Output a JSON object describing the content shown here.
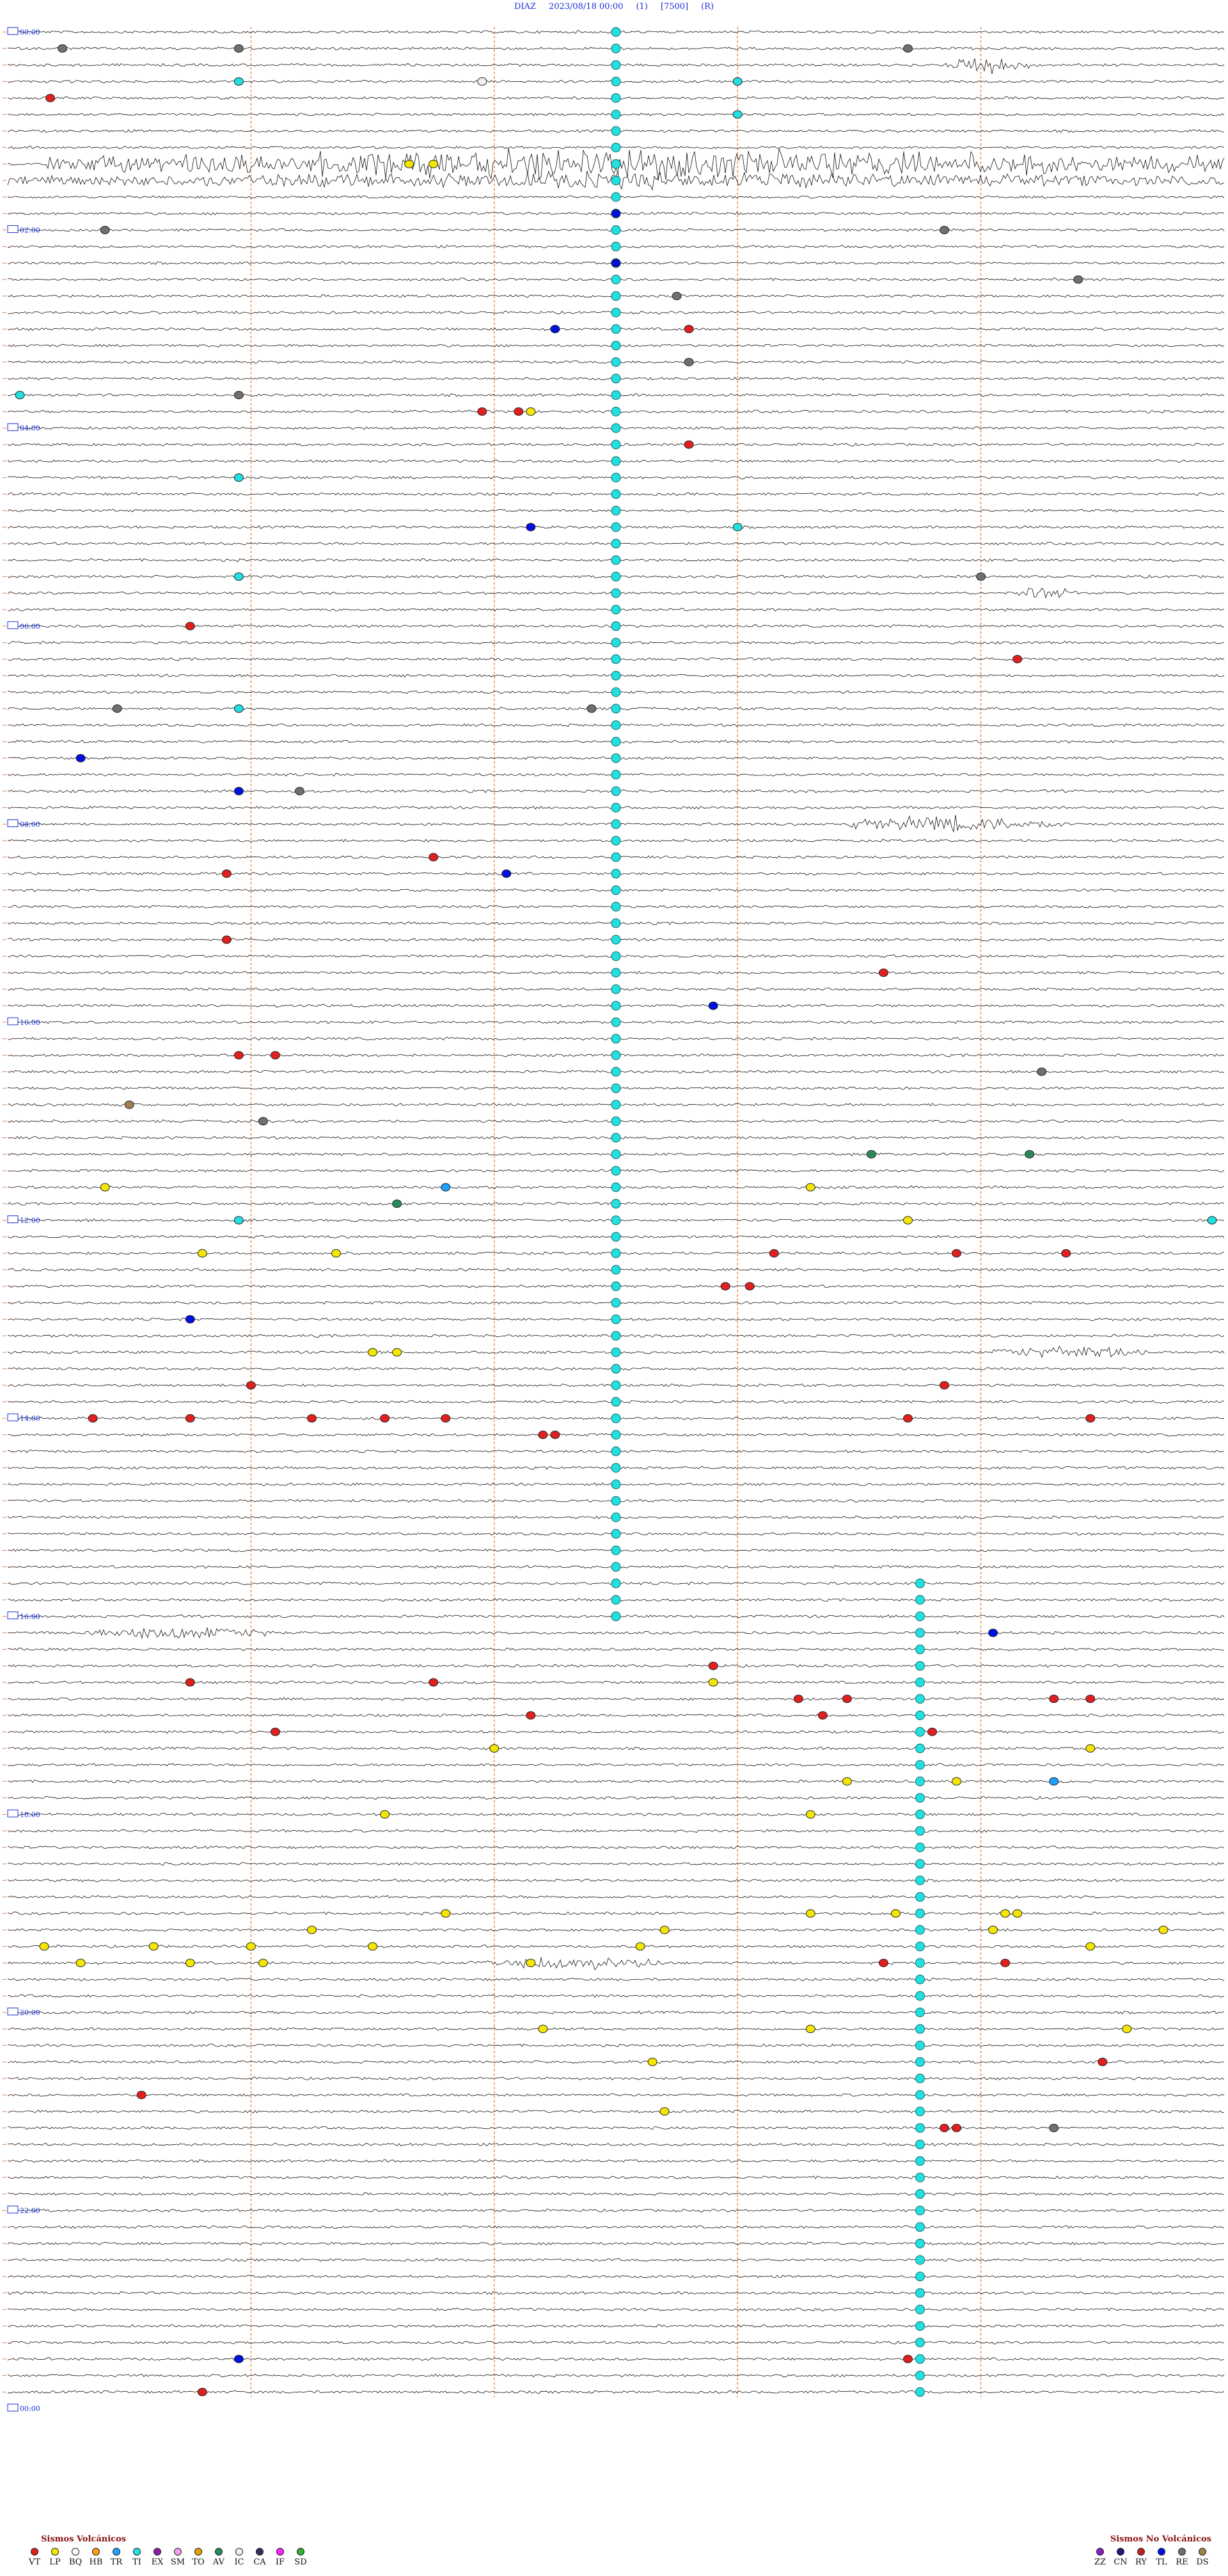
{
  "header": {
    "station": "DIAZ",
    "datetime": "2023/08/18 00:00",
    "channel": "(1)",
    "scale": "[7500]",
    "flag": "(R)"
  },
  "chart_data": {
    "type": "helicorder",
    "title": "DIAZ 2023/08/18 00:00 (1) [7500] (R)",
    "hour_labels": [
      "00:00",
      "02:00",
      "04:00",
      "06:00",
      "08:00",
      "10:00",
      "12:00",
      "14:00",
      "16:00",
      "18:00",
      "20:00",
      "22:00",
      "00:00"
    ],
    "trace_count": 144,
    "minutes_per_trace": 10,
    "time_markers_min": [
      2,
      4,
      6,
      8
    ],
    "colors": {
      "trace": "#111111",
      "label": "#1a2fd6",
      "minute_marker": "#e07a3a",
      "VT": "#e02020",
      "LP": "#f4e600",
      "BQ": "#ffffff",
      "HB": "#ff9a1a",
      "TR": "#1ea0ff",
      "TI": "#22e0e0",
      "EX": "#8b1ea8",
      "SM": "#f0a0f0",
      "TO": "#e0a000",
      "AV": "#2a8a5a",
      "IC": "#f0f0f0",
      "CA": "#3a2a60",
      "IF": "#ff20ff",
      "SD": "#30b030",
      "ZZ": "#8a20c0",
      "CN": "#1a1a80",
      "RY": "#c02020",
      "TL": "#0010e0",
      "RE": "#707070",
      "DS": "#a08050"
    },
    "bursts": [
      {
        "trace": 8,
        "start_min": 0.3,
        "end_min": 10,
        "amp": 0.8
      },
      {
        "trace": 9,
        "start_min": 0.0,
        "end_min": 10,
        "amp": 0.4
      },
      {
        "trace": 2,
        "start_min": 7.7,
        "end_min": 8.4,
        "amp": 0.4
      },
      {
        "trace": 97,
        "start_min": 0.6,
        "end_min": 2.2,
        "amp": 0.3
      },
      {
        "trace": 48,
        "start_min": 6.9,
        "end_min": 8.7,
        "amp": 0.4
      },
      {
        "trace": 80,
        "start_min": 8.1,
        "end_min": 9.4,
        "amp": 0.3
      },
      {
        "trace": 117,
        "start_min": 3.8,
        "end_min": 5.4,
        "amp": 0.3
      },
      {
        "trace": 34,
        "start_min": 8.3,
        "end_min": 8.8,
        "amp": 0.3
      }
    ],
    "events": [
      {
        "t": 1,
        "m": 0.45,
        "c": "RE"
      },
      {
        "t": 1,
        "m": 1.9,
        "c": "RE"
      },
      {
        "t": 1,
        "m": 7.4,
        "c": "RE"
      },
      {
        "t": 3,
        "m": 1.9,
        "c": "TI"
      },
      {
        "t": 3,
        "m": 3.9,
        "c": "IC"
      },
      {
        "t": 3,
        "m": 6.0,
        "c": "TI"
      },
      {
        "t": 4,
        "m": 0.35,
        "c": "VT"
      },
      {
        "t": 5,
        "m": 6.0,
        "c": "TI"
      },
      {
        "t": 8,
        "m": 3.3,
        "c": "LP"
      },
      {
        "t": 8,
        "m": 3.5,
        "c": "LP"
      },
      {
        "t": 11,
        "m": 5.0,
        "c": "TL"
      },
      {
        "t": 12,
        "m": 0.8,
        "c": "RE"
      },
      {
        "t": 12,
        "m": 7.7,
        "c": "RE"
      },
      {
        "t": 14,
        "m": 5.0,
        "c": "TL"
      },
      {
        "t": 15,
        "m": 8.8,
        "c": "RE"
      },
      {
        "t": 16,
        "m": 5.5,
        "c": "RE"
      },
      {
        "t": 18,
        "m": 5.6,
        "c": "VT"
      },
      {
        "t": 18,
        "m": 4.5,
        "c": "TL"
      },
      {
        "t": 20,
        "m": 5.6,
        "c": "RE"
      },
      {
        "t": 22,
        "m": 0.1,
        "c": "TI"
      },
      {
        "t": 22,
        "m": 1.9,
        "c": "RE"
      },
      {
        "t": 23,
        "m": 3.9,
        "c": "VT"
      },
      {
        "t": 23,
        "m": 4.2,
        "c": "VT"
      },
      {
        "t": 23,
        "m": 4.3,
        "c": "LP"
      },
      {
        "t": 25,
        "m": 5.6,
        "c": "VT"
      },
      {
        "t": 27,
        "m": 1.9,
        "c": "TI"
      },
      {
        "t": 30,
        "m": 6.0,
        "c": "TI"
      },
      {
        "t": 30,
        "m": 4.3,
        "c": "TL"
      },
      {
        "t": 33,
        "m": 1.9,
        "c": "TI"
      },
      {
        "t": 33,
        "m": 8.0,
        "c": "RE"
      },
      {
        "t": 36,
        "m": 1.5,
        "c": "VT"
      },
      {
        "t": 38,
        "m": 8.3,
        "c": "VT"
      },
      {
        "t": 41,
        "m": 1.9,
        "c": "TI"
      },
      {
        "t": 41,
        "m": 0.9,
        "c": "RE"
      },
      {
        "t": 41,
        "m": 4.8,
        "c": "RE"
      },
      {
        "t": 44,
        "m": 0.6,
        "c": "TL"
      },
      {
        "t": 46,
        "m": 1.9,
        "c": "TL"
      },
      {
        "t": 46,
        "m": 2.4,
        "c": "RE"
      },
      {
        "t": 50,
        "m": 3.5,
        "c": "VT"
      },
      {
        "t": 51,
        "m": 4.1,
        "c": "TL"
      },
      {
        "t": 51,
        "m": 1.8,
        "c": "VT"
      },
      {
        "t": 55,
        "m": 1.8,
        "c": "VT"
      },
      {
        "t": 57,
        "m": 7.2,
        "c": "VT"
      },
      {
        "t": 59,
        "m": 5.8,
        "c": "TL"
      },
      {
        "t": 62,
        "m": 1.9,
        "c": "VT"
      },
      {
        "t": 62,
        "m": 2.2,
        "c": "VT"
      },
      {
        "t": 63,
        "m": 8.5,
        "c": "RE"
      },
      {
        "t": 65,
        "m": 1.0,
        "c": "DS"
      },
      {
        "t": 66,
        "m": 2.1,
        "c": "RE"
      },
      {
        "t": 68,
        "m": 7.1,
        "c": "AV"
      },
      {
        "t": 68,
        "m": 8.4,
        "c": "AV"
      },
      {
        "t": 70,
        "m": 0.8,
        "c": "LP"
      },
      {
        "t": 70,
        "m": 3.6,
        "c": "TR"
      },
      {
        "t": 70,
        "m": 6.6,
        "c": "LP"
      },
      {
        "t": 71,
        "m": 3.2,
        "c": "AV"
      },
      {
        "t": 72,
        "m": 1.9,
        "c": "TI"
      },
      {
        "t": 72,
        "m": 9.9,
        "c": "TI"
      },
      {
        "t": 72,
        "m": 7.4,
        "c": "LP"
      },
      {
        "t": 74,
        "m": 1.6,
        "c": "LP"
      },
      {
        "t": 74,
        "m": 2.7,
        "c": "LP"
      },
      {
        "t": 74,
        "m": 6.3,
        "c": "VT"
      },
      {
        "t": 74,
        "m": 7.8,
        "c": "VT"
      },
      {
        "t": 74,
        "m": 8.7,
        "c": "VT"
      },
      {
        "t": 76,
        "m": 5.9,
        "c": "VT"
      },
      {
        "t": 76,
        "m": 6.1,
        "c": "VT"
      },
      {
        "t": 78,
        "m": 1.5,
        "c": "TL"
      },
      {
        "t": 80,
        "m": 3.0,
        "c": "LP"
      },
      {
        "t": 80,
        "m": 3.2,
        "c": "LP"
      },
      {
        "t": 82,
        "m": 2.0,
        "c": "VT"
      },
      {
        "t": 82,
        "m": 7.7,
        "c": "VT"
      },
      {
        "t": 84,
        "m": 0.7,
        "c": "VT"
      },
      {
        "t": 84,
        "m": 1.5,
        "c": "VT"
      },
      {
        "t": 84,
        "m": 2.5,
        "c": "VT"
      },
      {
        "t": 84,
        "m": 3.1,
        "c": "VT"
      },
      {
        "t": 84,
        "m": 3.6,
        "c": "VT"
      },
      {
        "t": 84,
        "m": 7.4,
        "c": "VT"
      },
      {
        "t": 84,
        "m": 8.9,
        "c": "VT"
      },
      {
        "t": 85,
        "m": 4.4,
        "c": "VT"
      },
      {
        "t": 85,
        "m": 4.5,
        "c": "VT"
      },
      {
        "t": 97,
        "m": 8.1,
        "c": "TL"
      },
      {
        "t": 99,
        "m": 5.8,
        "c": "VT"
      },
      {
        "t": 100,
        "m": 1.5,
        "c": "VT"
      },
      {
        "t": 100,
        "m": 3.5,
        "c": "VT"
      },
      {
        "t": 100,
        "m": 5.8,
        "c": "LP"
      },
      {
        "t": 101,
        "m": 6.5,
        "c": "VT"
      },
      {
        "t": 101,
        "m": 6.9,
        "c": "VT"
      },
      {
        "t": 101,
        "m": 8.6,
        "c": "VT"
      },
      {
        "t": 101,
        "m": 8.9,
        "c": "VT"
      },
      {
        "t": 102,
        "m": 4.3,
        "c": "VT"
      },
      {
        "t": 102,
        "m": 6.7,
        "c": "VT"
      },
      {
        "t": 103,
        "m": 2.2,
        "c": "VT"
      },
      {
        "t": 103,
        "m": 7.6,
        "c": "VT"
      },
      {
        "t": 104,
        "m": 4.0,
        "c": "LP"
      },
      {
        "t": 104,
        "m": 8.9,
        "c": "LP"
      },
      {
        "t": 106,
        "m": 6.9,
        "c": "LP"
      },
      {
        "t": 106,
        "m": 7.8,
        "c": "LP"
      },
      {
        "t": 106,
        "m": 8.6,
        "c": "TR"
      },
      {
        "t": 108,
        "m": 3.1,
        "c": "LP"
      },
      {
        "t": 108,
        "m": 6.6,
        "c": "LP"
      },
      {
        "t": 114,
        "m": 3.6,
        "c": "LP"
      },
      {
        "t": 114,
        "m": 6.6,
        "c": "LP"
      },
      {
        "t": 114,
        "m": 7.3,
        "c": "LP"
      },
      {
        "t": 114,
        "m": 8.2,
        "c": "LP"
      },
      {
        "t": 114,
        "m": 8.3,
        "c": "LP"
      },
      {
        "t": 115,
        "m": 2.5,
        "c": "LP"
      },
      {
        "t": 115,
        "m": 5.4,
        "c": "LP"
      },
      {
        "t": 115,
        "m": 8.1,
        "c": "LP"
      },
      {
        "t": 115,
        "m": 9.5,
        "c": "LP"
      },
      {
        "t": 116,
        "m": 0.3,
        "c": "LP"
      },
      {
        "t": 116,
        "m": 1.2,
        "c": "LP"
      },
      {
        "t": 116,
        "m": 2.0,
        "c": "LP"
      },
      {
        "t": 116,
        "m": 3.0,
        "c": "LP"
      },
      {
        "t": 116,
        "m": 5.2,
        "c": "LP"
      },
      {
        "t": 116,
        "m": 8.9,
        "c": "LP"
      },
      {
        "t": 117,
        "m": 0.6,
        "c": "LP"
      },
      {
        "t": 117,
        "m": 1.5,
        "c": "LP"
      },
      {
        "t": 117,
        "m": 2.1,
        "c": "LP"
      },
      {
        "t": 117,
        "m": 4.3,
        "c": "LP"
      },
      {
        "t": 117,
        "m": 7.2,
        "c": "VT"
      },
      {
        "t": 117,
        "m": 8.2,
        "c": "VT"
      },
      {
        "t": 121,
        "m": 4.4,
        "c": "LP"
      },
      {
        "t": 121,
        "m": 6.6,
        "c": "LP"
      },
      {
        "t": 121,
        "m": 9.2,
        "c": "LP"
      },
      {
        "t": 123,
        "m": 5.3,
        "c": "LP"
      },
      {
        "t": 123,
        "m": 9.0,
        "c": "VT"
      },
      {
        "t": 125,
        "m": 1.1,
        "c": "VT"
      },
      {
        "t": 126,
        "m": 5.4,
        "c": "LP"
      },
      {
        "t": 127,
        "m": 7.7,
        "c": "VT"
      },
      {
        "t": 127,
        "m": 7.8,
        "c": "VT"
      },
      {
        "t": 127,
        "m": 8.6,
        "c": "RE"
      },
      {
        "t": 141,
        "m": 1.9,
        "c": "TL"
      },
      {
        "t": 141,
        "m": 7.4,
        "c": "VT"
      },
      {
        "t": 143,
        "m": 1.6,
        "c": "VT"
      }
    ]
  },
  "legend_volcanic": {
    "title": "Sismos Volcánicos",
    "items": [
      {
        "code": "VT",
        "color": "#e02020"
      },
      {
        "code": "LP",
        "color": "#f4e600"
      },
      {
        "code": "BQ",
        "color": "#ffffff"
      },
      {
        "code": "HB",
        "color": "#ff9a1a"
      },
      {
        "code": "TR",
        "color": "#1ea0ff"
      },
      {
        "code": "TI",
        "color": "#22e0e0"
      },
      {
        "code": "EX",
        "color": "#8b1ea8"
      },
      {
        "code": "SM",
        "color": "#f0a0f0"
      },
      {
        "code": "TO",
        "color": "#e0a000"
      },
      {
        "code": "AV",
        "color": "#2a8a5a"
      },
      {
        "code": "IC",
        "color": "#f0f0f0"
      },
      {
        "code": "CA",
        "color": "#3a2a60"
      },
      {
        "code": "IF",
        "color": "#ff20ff"
      },
      {
        "code": "SD",
        "color": "#30b030"
      }
    ]
  },
  "legend_nonvolcanic": {
    "title": "Sismos No Volcánicos",
    "items": [
      {
        "code": "ZZ",
        "color": "#8a20c0"
      },
      {
        "code": "CN",
        "color": "#1a1a80"
      },
      {
        "code": "RY",
        "color": "#c02020"
      },
      {
        "code": "TL",
        "color": "#0010e0"
      },
      {
        "code": "RE",
        "color": "#707070"
      },
      {
        "code": "DS",
        "color": "#a08050"
      }
    ]
  }
}
